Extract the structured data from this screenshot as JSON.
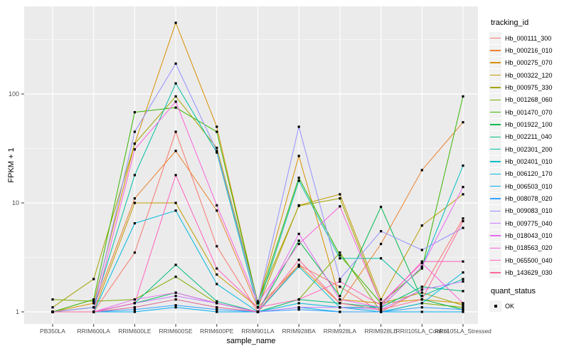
{
  "figure": {
    "background": "#FFFFFF",
    "panel_bg": "#EBEBEB",
    "grid_color": "#FFFFFF",
    "tick_text_color": "#4D4D4D",
    "tick_mark_color": "#333333",
    "axis_title_color": "#000000"
  },
  "chart_data": {
    "type": "line",
    "title": "",
    "xlabel": "sample_name",
    "ylabel": "FPKM + 1",
    "y_scale": "log10",
    "y_ticks": [
      1,
      10,
      100
    ],
    "y_tick_labels": [
      "1",
      "10",
      "100"
    ],
    "y_minor_ticks": [
      3.162,
      31.62,
      316.2
    ],
    "ylim": [
      0.8,
      630
    ],
    "grid": true,
    "legend_position": "right",
    "point_marker": {
      "shape": "square",
      "color": "#000000",
      "size": 3.2
    },
    "categories": [
      "PB350LA",
      "RRIM600LA",
      "RRIM600LE",
      "RRIM600SE",
      "RRIM600PE",
      "RRIM901LA",
      "RRIM928BA",
      "RRIM928LA",
      "RRIM928LE",
      "RRII105LA_Control",
      "RRII105LA_Stressed"
    ],
    "series": [
      {
        "name": "Hb_000111_300",
        "color": "#F8766D",
        "values": [
          1,
          1,
          3.5,
          45,
          4.0,
          1,
          2.7,
          1.7,
          1,
          1.6,
          7.2
        ]
      },
      {
        "name": "Hb_000216_010",
        "color": "#EA8331",
        "values": [
          1,
          1.1,
          11,
          30,
          8.5,
          1.1,
          2.7,
          1.2,
          4.2,
          20,
          55
        ]
      },
      {
        "name": "Hb_000275_070",
        "color": "#D89000",
        "values": [
          1,
          1.2,
          35,
          450,
          50,
          1.2,
          27,
          1.3,
          1.2,
          1.3,
          1.2
        ]
      },
      {
        "name": "Hb_000322_120",
        "color": "#C09B00",
        "values": [
          1,
          1,
          10,
          10,
          2.2,
          1.1,
          9.5,
          12,
          1.3,
          6.2,
          12
        ]
      },
      {
        "name": "Hb_000975_330",
        "color": "#A3A500",
        "values": [
          1.1,
          2.0,
          35,
          95,
          32,
          1.25,
          9.4,
          11,
          1.2,
          1.5,
          1.15
        ]
      },
      {
        "name": "Hb_001268_060",
        "color": "#7CAE00",
        "values": [
          1.3,
          1.25,
          1.3,
          2.1,
          1.2,
          1,
          1.3,
          3.5,
          1,
          1.2,
          1.1
        ]
      },
      {
        "name": "Hb_001470_070",
        "color": "#39B600",
        "values": [
          1,
          1.3,
          68,
          75,
          45,
          1.2,
          17,
          3.3,
          1.2,
          2.5,
          95
        ]
      },
      {
        "name": "Hb_001922_100",
        "color": "#00BB4E",
        "values": [
          1,
          1,
          1.2,
          1.5,
          1.2,
          1,
          4.5,
          1.4,
          9.2,
          1.3,
          1.05
        ]
      },
      {
        "name": "Hb_002211_040",
        "color": "#00BF7D",
        "values": [
          1,
          1,
          1.2,
          2.7,
          1.25,
          1,
          1.3,
          1.2,
          1.1,
          1.7,
          1.55
        ]
      },
      {
        "name": "Hb_002301_200",
        "color": "#00C1A3",
        "values": [
          1,
          1.1,
          18,
          125,
          29,
          1.1,
          16,
          3.1,
          3.1,
          1.4,
          2.0
        ]
      },
      {
        "name": "Hb_002401_010",
        "color": "#00BFC4",
        "values": [
          1,
          1,
          1.1,
          1.3,
          1.1,
          1,
          2.6,
          1.1,
          1.1,
          2.6,
          22
        ]
      },
      {
        "name": "Hb_006120_170",
        "color": "#00BAE0",
        "values": [
          1,
          1,
          6.5,
          8.5,
          1.8,
          1,
          1.2,
          1.1,
          1,
          1.2,
          2.3
        ]
      },
      {
        "name": "Hb_006503_010",
        "color": "#00B0F6",
        "values": [
          1,
          1,
          1,
          1.1,
          1,
          1,
          1.1,
          1,
          1,
          1,
          1
        ]
      },
      {
        "name": "Hb_008078_020",
        "color": "#35A2FF",
        "values": [
          1,
          1,
          1.05,
          1.15,
          1.05,
          1,
          1.05,
          1,
          1,
          1.1,
          1.05
        ]
      },
      {
        "name": "Hb_009083_010",
        "color": "#9590FF",
        "values": [
          1,
          1.1,
          45,
          190,
          30,
          1.2,
          50,
          2.0,
          5.5,
          3.7,
          5.9
        ]
      },
      {
        "name": "Hb_009775_040",
        "color": "#C77CFF",
        "values": [
          1,
          1,
          1.2,
          1.4,
          1.2,
          1,
          1.1,
          1.1,
          1.05,
          1.6,
          1.9
        ]
      },
      {
        "name": "Hb_018043_010",
        "color": "#E76BF3",
        "values": [
          1,
          1,
          1.3,
          1.5,
          1.2,
          1,
          5.2,
          1.3,
          1.1,
          2.6,
          14
        ]
      },
      {
        "name": "Hb_018563_020",
        "color": "#FA62DB",
        "values": [
          1,
          1,
          31,
          85,
          9.5,
          1.2,
          4.2,
          9.3,
          1.2,
          2.8,
          1.2
        ]
      },
      {
        "name": "Hb_065500_040",
        "color": "#FF62BC",
        "values": [
          1,
          1,
          1.2,
          18,
          2.5,
          1.1,
          1.3,
          1.9,
          1.15,
          2.9,
          2.9
        ]
      },
      {
        "name": "Hb_143629_030",
        "color": "#FF6A98",
        "values": [
          1,
          1,
          1.1,
          1.3,
          1.1,
          1,
          3.0,
          1.2,
          1.05,
          1.3,
          6.8
        ]
      }
    ]
  },
  "legend": {
    "tracking_title": "tracking_id",
    "quant_title": "quant_status",
    "quant_items": [
      {
        "label": "OK",
        "marker": "black-square"
      }
    ]
  }
}
